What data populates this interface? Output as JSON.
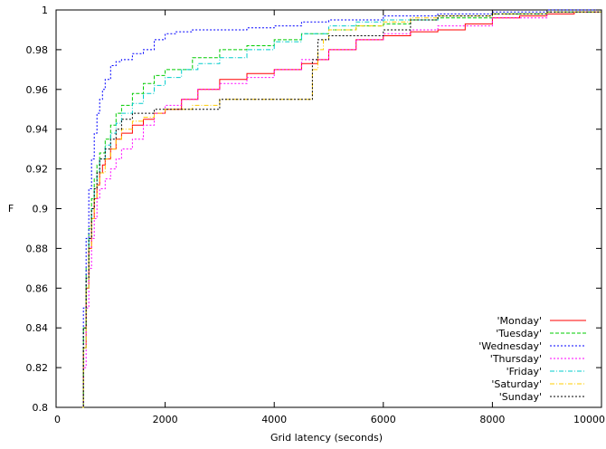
{
  "chart_data": {
    "type": "line",
    "title": "",
    "xlabel": "Grid latency (seconds)",
    "ylabel": "F",
    "xlim": [
      0,
      10000
    ],
    "ylim": [
      0.8,
      1.0
    ],
    "x_ticks": [
      0,
      2000,
      4000,
      6000,
      8000,
      10000
    ],
    "x_tick_labels": [
      "0",
      "2000",
      "4000",
      "6000",
      "8000",
      "10000"
    ],
    "y_ticks": [
      0.8,
      0.82,
      0.84,
      0.86,
      0.88,
      0.9,
      0.92,
      0.94,
      0.96,
      0.98,
      1.0
    ],
    "y_tick_labels": [
      "0.8",
      "0.82",
      "0.84",
      "0.86",
      "0.88",
      "0.9",
      "0.92",
      "0.94",
      "0.96",
      "0.98",
      "1"
    ],
    "grid": false,
    "legend_position": "bottom-right",
    "series": [
      {
        "name": "'Monday'",
        "color": "#ff0000",
        "dash": "solid",
        "x": [
          450,
          500,
          550,
          600,
          650,
          700,
          750,
          800,
          850,
          900,
          1000,
          1100,
          1200,
          1400,
          1600,
          1800,
          2000,
          2300,
          2600,
          3000,
          3500,
          4000,
          4500,
          4800,
          5000,
          5500,
          6000,
          6500,
          7000,
          7500,
          8000,
          8500,
          9000,
          9500,
          10000
        ],
        "y": [
          0.8,
          0.83,
          0.86,
          0.88,
          0.895,
          0.905,
          0.912,
          0.918,
          0.922,
          0.925,
          0.93,
          0.935,
          0.938,
          0.942,
          0.945,
          0.948,
          0.95,
          0.955,
          0.96,
          0.965,
          0.968,
          0.97,
          0.973,
          0.975,
          0.98,
          0.985,
          0.987,
          0.989,
          0.99,
          0.993,
          0.996,
          0.997,
          0.998,
          0.999,
          1.0
        ]
      },
      {
        "name": "'Tuesday'",
        "color": "#00cc00",
        "dash": "dashed",
        "x": [
          450,
          500,
          550,
          600,
          650,
          700,
          750,
          800,
          900,
          1000,
          1100,
          1200,
          1400,
          1600,
          1800,
          2000,
          2500,
          3000,
          3500,
          4000,
          4500,
          5000,
          5500,
          6000,
          6500,
          7000,
          8000,
          9000,
          10000
        ],
        "y": [
          0.8,
          0.84,
          0.87,
          0.89,
          0.905,
          0.915,
          0.922,
          0.928,
          0.935,
          0.942,
          0.948,
          0.952,
          0.958,
          0.963,
          0.967,
          0.97,
          0.976,
          0.98,
          0.982,
          0.985,
          0.988,
          0.99,
          0.992,
          0.993,
          0.995,
          0.996,
          0.998,
          0.999,
          1.0
        ]
      },
      {
        "name": "'Wednesday'",
        "color": "#0000ff",
        "dash": "dotted",
        "x": [
          450,
          500,
          550,
          600,
          650,
          700,
          750,
          800,
          850,
          900,
          1000,
          1100,
          1200,
          1400,
          1600,
          1800,
          2000,
          2200,
          2500,
          3000,
          3500,
          4000,
          4500,
          5000,
          6000,
          7000,
          8000,
          9000,
          10000
        ],
        "y": [
          0.8,
          0.85,
          0.885,
          0.91,
          0.925,
          0.938,
          0.948,
          0.955,
          0.96,
          0.965,
          0.972,
          0.974,
          0.975,
          0.978,
          0.98,
          0.985,
          0.988,
          0.989,
          0.99,
          0.99,
          0.991,
          0.992,
          0.994,
          0.995,
          0.997,
          0.998,
          0.999,
          1.0,
          1.0
        ]
      },
      {
        "name": "'Thursday'",
        "color": "#ff00ff",
        "dash": "dotted",
        "x": [
          450,
          500,
          550,
          600,
          650,
          700,
          750,
          800,
          900,
          1000,
          1100,
          1200,
          1400,
          1600,
          1800,
          2000,
          2300,
          2600,
          3000,
          3500,
          4000,
          4500,
          5000,
          5500,
          6000,
          6500,
          7000,
          8000,
          9000,
          10000
        ],
        "y": [
          0.8,
          0.82,
          0.85,
          0.87,
          0.885,
          0.895,
          0.905,
          0.91,
          0.915,
          0.92,
          0.925,
          0.93,
          0.935,
          0.942,
          0.948,
          0.952,
          0.955,
          0.96,
          0.963,
          0.966,
          0.97,
          0.975,
          0.98,
          0.985,
          0.988,
          0.99,
          0.992,
          0.996,
          0.999,
          1.0
        ]
      },
      {
        "name": "'Friday'",
        "color": "#00cccc",
        "dash": "dashdot",
        "x": [
          450,
          500,
          550,
          600,
          650,
          700,
          750,
          800,
          900,
          1000,
          1100,
          1200,
          1400,
          1600,
          1800,
          2000,
          2300,
          2600,
          3000,
          3500,
          4000,
          4500,
          5000,
          5500,
          6000,
          7000,
          8000,
          9000,
          10000
        ],
        "y": [
          0.8,
          0.83,
          0.86,
          0.885,
          0.9,
          0.91,
          0.918,
          0.925,
          0.932,
          0.938,
          0.943,
          0.948,
          0.953,
          0.958,
          0.962,
          0.966,
          0.97,
          0.973,
          0.976,
          0.98,
          0.984,
          0.988,
          0.992,
          0.994,
          0.995,
          0.997,
          0.998,
          0.999,
          1.0
        ]
      },
      {
        "name": "'Saturday'",
        "color": "#ffcc00",
        "dash": "dashdot",
        "x": [
          450,
          500,
          550,
          600,
          650,
          700,
          750,
          800,
          900,
          1000,
          1100,
          1200,
          1400,
          1600,
          1800,
          2000,
          2500,
          3000,
          3500,
          4000,
          4300,
          4600,
          4700,
          4800,
          4900,
          5000,
          5500,
          6000,
          6500,
          7000,
          8000,
          9000,
          10000
        ],
        "y": [
          0.8,
          0.83,
          0.86,
          0.88,
          0.895,
          0.905,
          0.912,
          0.918,
          0.925,
          0.93,
          0.935,
          0.94,
          0.944,
          0.946,
          0.948,
          0.95,
          0.952,
          0.955,
          0.955,
          0.955,
          0.955,
          0.955,
          0.97,
          0.98,
          0.985,
          0.99,
          0.992,
          0.994,
          0.996,
          0.997,
          0.998,
          0.999,
          1.0
        ]
      },
      {
        "name": "'Sunday'",
        "color": "#000000",
        "dash": "dotted",
        "x": [
          450,
          500,
          550,
          600,
          650,
          700,
          750,
          800,
          900,
          1000,
          1100,
          1200,
          1400,
          1600,
          1800,
          2000,
          2500,
          3000,
          3500,
          4000,
          4300,
          4600,
          4700,
          4800,
          5000,
          5500,
          6000,
          6500,
          7000,
          8000,
          9000,
          10000
        ],
        "y": [
          0.8,
          0.84,
          0.865,
          0.885,
          0.9,
          0.91,
          0.918,
          0.925,
          0.93,
          0.935,
          0.94,
          0.945,
          0.948,
          0.948,
          0.95,
          0.95,
          0.95,
          0.955,
          0.955,
          0.955,
          0.955,
          0.955,
          0.975,
          0.985,
          0.987,
          0.987,
          0.99,
          0.995,
          0.997,
          0.998,
          0.999,
          1.0
        ]
      }
    ]
  }
}
